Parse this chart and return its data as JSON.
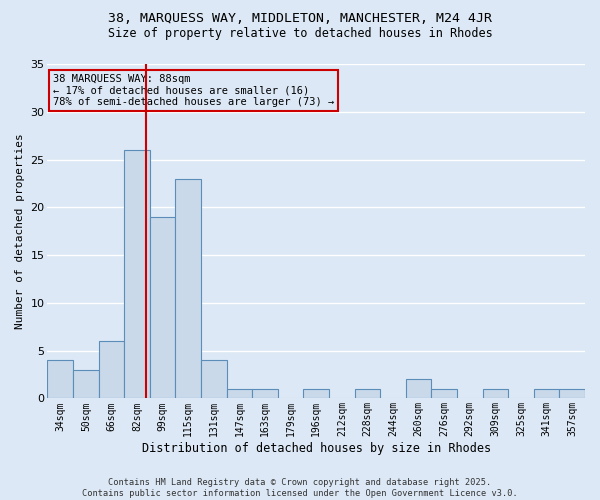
{
  "title1": "38, MARQUESS WAY, MIDDLETON, MANCHESTER, M24 4JR",
  "title2": "Size of property relative to detached houses in Rhodes",
  "xlabel": "Distribution of detached houses by size in Rhodes",
  "ylabel": "Number of detached properties",
  "bin_labels": [
    "34sqm",
    "50sqm",
    "66sqm",
    "82sqm",
    "99sqm",
    "115sqm",
    "131sqm",
    "147sqm",
    "163sqm",
    "179sqm",
    "196sqm",
    "212sqm",
    "228sqm",
    "244sqm",
    "260sqm",
    "276sqm",
    "292sqm",
    "309sqm",
    "325sqm",
    "341sqm",
    "357sqm"
  ],
  "values": [
    4,
    3,
    6,
    26,
    19,
    23,
    4,
    1,
    1,
    0,
    1,
    0,
    1,
    0,
    2,
    1,
    0,
    1,
    0,
    1,
    1
  ],
  "bar_color": "#c9d9ea",
  "bar_edge_color": "#5b8db8",
  "background_color": "#dce8f5",
  "grid_color": "#ffffff",
  "annotation_text": "38 MARQUESS WAY: 88sqm\n← 17% of detached houses are smaller (16)\n78% of semi-detached houses are larger (73) →",
  "red_line_x": 3.35,
  "red_line_color": "#cc0000",
  "annotation_box_edge": "#cc0000",
  "footer1": "Contains HM Land Registry data © Crown copyright and database right 2025.",
  "footer2": "Contains public sector information licensed under the Open Government Licence v3.0.",
  "ylim": [
    0,
    35
  ],
  "yticks": [
    0,
    5,
    10,
    15,
    20,
    25,
    30,
    35
  ]
}
